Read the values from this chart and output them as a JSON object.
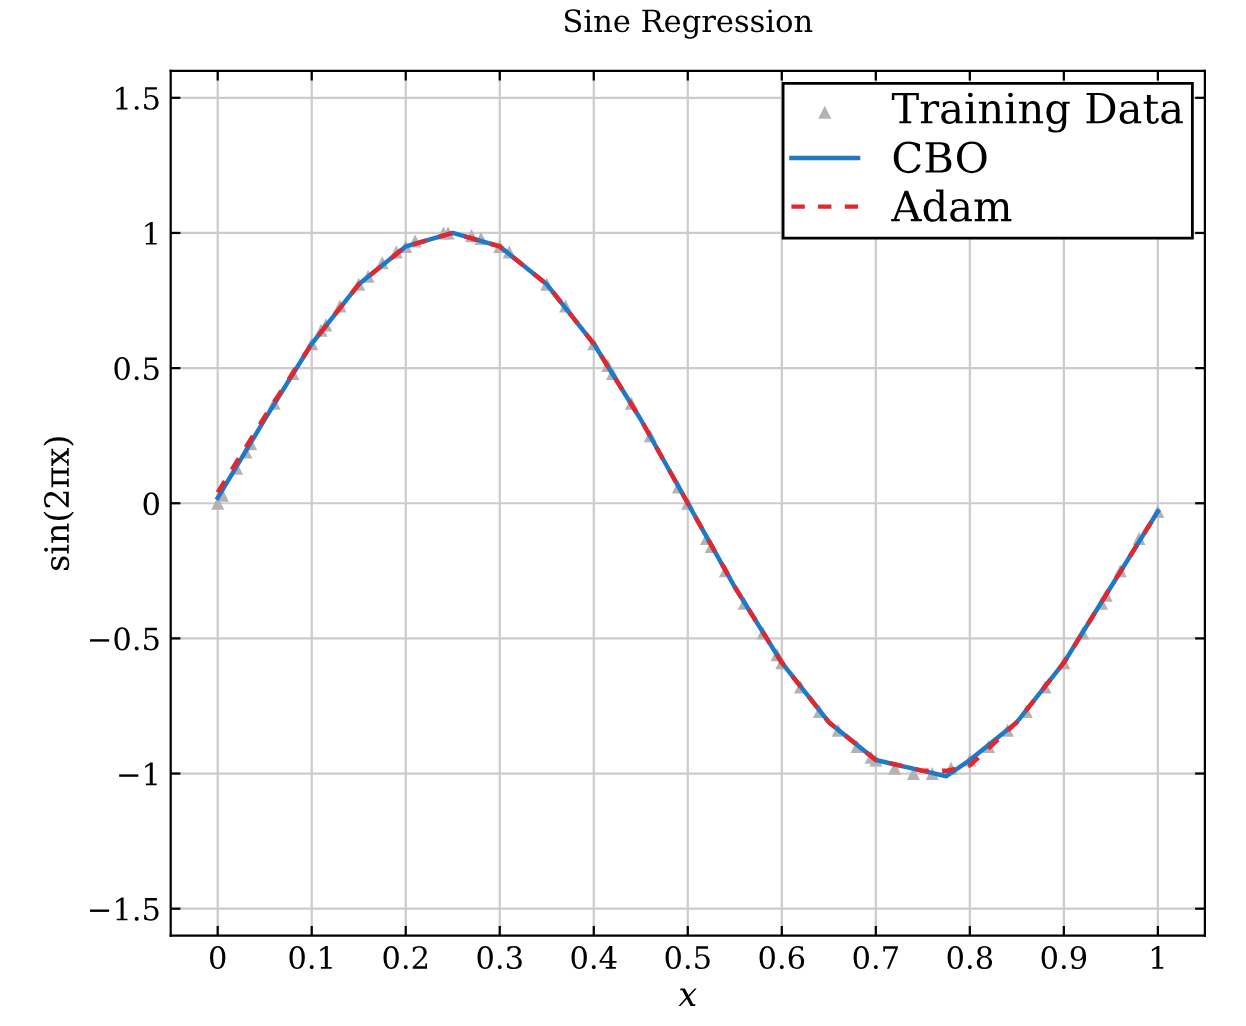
{
  "chart_data": {
    "type": "line",
    "title": "Sine Regression",
    "xlabel": "x",
    "ylabel": "sin(2πx)",
    "xlim": [
      -0.05,
      1.05
    ],
    "ylim": [
      -1.6,
      1.6
    ],
    "xticks": [
      0,
      0.1,
      0.2,
      0.3,
      0.4,
      0.5,
      0.6,
      0.7,
      0.8,
      0.9,
      1
    ],
    "yticks": [
      {
        "value": -1.5,
        "label": "−1.5"
      },
      {
        "value": -1,
        "label": "−1"
      },
      {
        "value": -0.5,
        "label": "−0.5"
      },
      0,
      0.5,
      1,
      1.5
    ],
    "grid": true,
    "legend": "top right",
    "series": [
      {
        "name": "Training Data",
        "type": "scatter",
        "marker": "triangle",
        "color": "#b3b3b3",
        "x": [
          0,
          0.005,
          0.02,
          0.03,
          0.035,
          0.06,
          0.08,
          0.1,
          0.11,
          0.115,
          0.13,
          0.15,
          0.16,
          0.175,
          0.19,
          0.2,
          0.21,
          0.24,
          0.245,
          0.27,
          0.28,
          0.3,
          0.31,
          0.35,
          0.37,
          0.4,
          0.415,
          0.42,
          0.44,
          0.46,
          0.49,
          0.5,
          0.52,
          0.525,
          0.54,
          0.56,
          0.58,
          0.595,
          0.6,
          0.62,
          0.64,
          0.66,
          0.68,
          0.695,
          0.7,
          0.72,
          0.74,
          0.76,
          0.78,
          0.8,
          0.82,
          0.84,
          0.86,
          0.88,
          0.9,
          0.92,
          0.94,
          0.945,
          0.96,
          0.98,
          1.0
        ],
        "values": [
          0,
          0.03,
          0.13,
          0.19,
          0.22,
          0.37,
          0.48,
          0.59,
          0.64,
          0.66,
          0.73,
          0.81,
          0.84,
          0.89,
          0.93,
          0.95,
          0.97,
          1.0,
          1.0,
          0.99,
          0.98,
          0.95,
          0.93,
          0.81,
          0.73,
          0.59,
          0.51,
          0.48,
          0.37,
          0.25,
          0.06,
          0,
          -0.13,
          -0.16,
          -0.25,
          -0.37,
          -0.48,
          -0.56,
          -0.59,
          -0.68,
          -0.77,
          -0.84,
          -0.9,
          -0.94,
          -0.95,
          -0.98,
          -1.0,
          -1.0,
          -0.98,
          -0.95,
          -0.9,
          -0.84,
          -0.77,
          -0.68,
          -0.59,
          -0.48,
          -0.37,
          -0.34,
          -0.25,
          -0.13,
          -0.03
        ]
      },
      {
        "name": "CBO",
        "line_style": "solid",
        "color": "#1f78c8",
        "x": [
          0,
          0.05,
          0.1,
          0.15,
          0.2,
          0.25,
          0.3,
          0.35,
          0.4,
          0.45,
          0.5,
          0.55,
          0.6,
          0.65,
          0.7,
          0.75,
          0.775,
          0.8,
          0.85,
          0.9,
          0.95,
          1.0
        ],
        "values": [
          0.02,
          0.31,
          0.59,
          0.81,
          0.95,
          1.0,
          0.95,
          0.81,
          0.59,
          0.31,
          0.0,
          -0.31,
          -0.59,
          -0.81,
          -0.95,
          -0.99,
          -1.01,
          -0.95,
          -0.81,
          -0.59,
          -0.31,
          -0.03
        ]
      },
      {
        "name": "Adam",
        "line_style": "dashed",
        "color": "#e0282e",
        "x": [
          0,
          0.05,
          0.1,
          0.15,
          0.2,
          0.25,
          0.3,
          0.35,
          0.4,
          0.45,
          0.5,
          0.55,
          0.6,
          0.65,
          0.7,
          0.75,
          0.775,
          0.8,
          0.85,
          0.9,
          0.95,
          1.0
        ],
        "values": [
          0.04,
          0.32,
          0.59,
          0.81,
          0.95,
          1.0,
          0.95,
          0.81,
          0.59,
          0.31,
          0.0,
          -0.31,
          -0.59,
          -0.81,
          -0.95,
          -0.99,
          -0.99,
          -0.97,
          -0.81,
          -0.59,
          -0.31,
          -0.03
        ]
      }
    ]
  }
}
